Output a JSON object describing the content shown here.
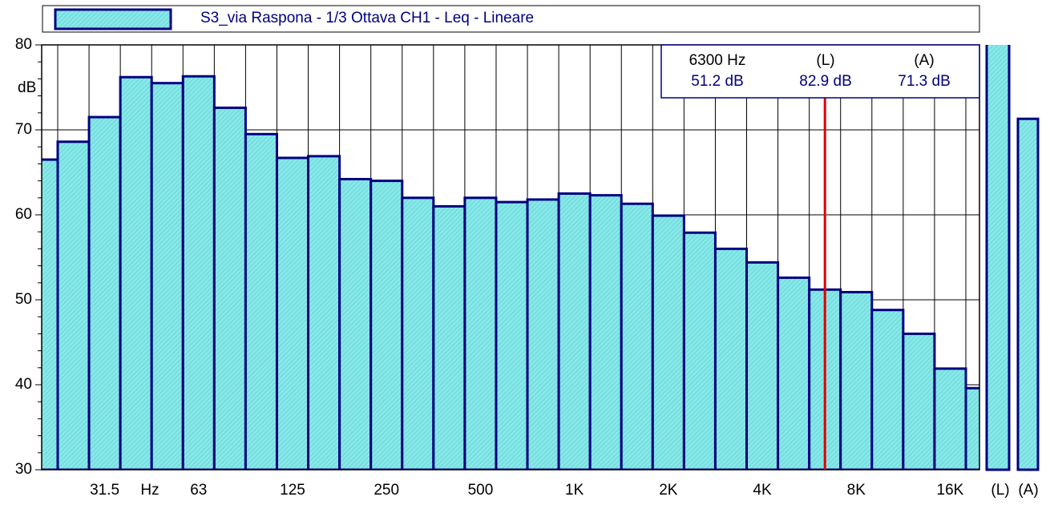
{
  "chart_data": {
    "type": "bar",
    "legend_label": "S3_via Raspona - 1/3 Ottava CH1 - Leq - Lineare",
    "ylabel": "dB",
    "x_unit": "Hz",
    "categories": [
      null,
      null,
      "31.5",
      null,
      null,
      "63",
      null,
      null,
      "125",
      null,
      null,
      "250",
      null,
      null,
      "500",
      null,
      null,
      "1K",
      null,
      null,
      "2K",
      null,
      null,
      "4K",
      null,
      null,
      "8K",
      null,
      null,
      "16K",
      null
    ],
    "values": [
      66.5,
      68.6,
      71.5,
      76.2,
      75.5,
      76.3,
      72.6,
      69.5,
      66.7,
      66.9,
      64.2,
      64.0,
      62.0,
      61.0,
      62.0,
      61.5,
      61.8,
      62.5,
      62.3,
      61.3,
      59.9,
      57.9,
      56.0,
      54.4,
      52.6,
      51.2,
      50.9,
      48.8,
      46.0,
      41.9,
      39.6
    ],
    "color": "#7fe3e3",
    "edge_color": "#000080",
    "ylim": [
      30,
      80
    ],
    "yticks": [
      30,
      40,
      50,
      60,
      70,
      80
    ],
    "minor_yticks": [
      32,
      34,
      36,
      38,
      42,
      44,
      46,
      48,
      52,
      54,
      56,
      58,
      62,
      64,
      66,
      68,
      72,
      74,
      76,
      78
    ],
    "grid": true,
    "cursor": {
      "index": 25,
      "label": "6300 Hz",
      "value_label": "51.2 dB",
      "color": "#e00000"
    },
    "totals": [
      {
        "name": "(L)",
        "value": 82.9,
        "value_label": "82.9 dB"
      },
      {
        "name": "(A)",
        "value": 71.3,
        "value_label": "71.3 dB"
      }
    ]
  }
}
